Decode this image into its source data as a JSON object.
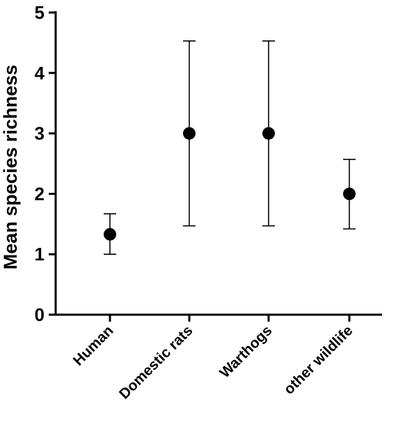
{
  "chart_data": {
    "type": "scatter",
    "title": "",
    "xlabel": "",
    "ylabel": "Mean species richness",
    "ylim": [
      0,
      5
    ],
    "yticks": [
      "0",
      "1",
      "2",
      "3",
      "4",
      "5"
    ],
    "grid": false,
    "categories": [
      "Human",
      "Domestic rats",
      "Warthogs",
      "other wildlife"
    ],
    "values": [
      1.33,
      3.0,
      3.0,
      2.0
    ],
    "error_low": [
      1.0,
      1.47,
      1.47,
      1.42
    ],
    "error_high": [
      1.67,
      4.53,
      4.53,
      2.57
    ],
    "colors": {
      "marker": "#000000",
      "axis": "#000000"
    }
  }
}
